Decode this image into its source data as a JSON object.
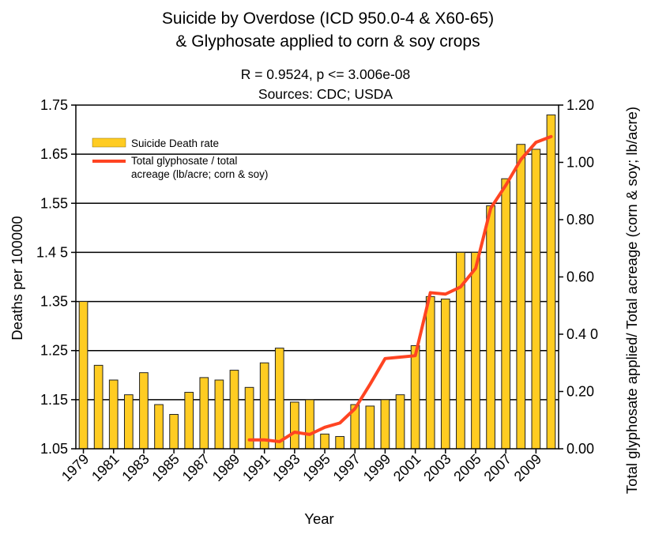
{
  "chart_data": {
    "type": "bar",
    "title": [
      "Suicide by Overdose (ICD 950.0-4 & X60-65)",
      "& Glyphosate applied to corn & soy crops"
    ],
    "subtitle": [
      "R = 0.9524, p <= 3.006e-08",
      "Sources: CDC; USDA"
    ],
    "xlabel": "Year",
    "ylabel": "Deaths per 100000",
    "ylabel_right": "Total glyphosate applied/ Total acreage (corn & soy; lb/acre)",
    "ylim": [
      1.05,
      1.75
    ],
    "ylim_right": [
      0.0,
      1.2
    ],
    "y_ticks": [
      "1.05",
      "1.15",
      "1.25",
      "1.35",
      "1.4 5",
      "1.55",
      "1.65",
      "1.75"
    ],
    "y_right_ticks": [
      "0.00",
      "0.20",
      "0.4 0",
      "0.60",
      "0.80",
      "1.00",
      "1.20"
    ],
    "x_tick_labels": [
      "1979",
      "1981",
      "1983",
      "1985",
      "1987",
      "1989",
      "1991",
      "1993",
      "1995",
      "1997",
      "1999",
      "2001",
      "2003",
      "2005",
      "2007",
      "2009"
    ],
    "grid": "horizontal",
    "legend_position": "top-left",
    "bar_color": "#ffcc22",
    "line_color": "#ff4422",
    "series": [
      {
        "name": "Suicide Death rate",
        "type": "bar",
        "axis": "left",
        "x": [
          1979,
          1980,
          1981,
          1982,
          1983,
          1984,
          1985,
          1986,
          1987,
          1988,
          1989,
          1990,
          1991,
          1992,
          1993,
          1994,
          1995,
          1996,
          1997,
          1998,
          1999,
          2000,
          2001,
          2002,
          2003,
          2004,
          2005,
          2006,
          2007,
          2008,
          2009,
          2010
        ],
        "values": [
          1.35,
          1.22,
          1.19,
          1.16,
          1.205,
          1.14,
          1.12,
          1.165,
          1.195,
          1.19,
          1.21,
          1.175,
          1.225,
          1.255,
          1.145,
          1.15,
          1.08,
          1.075,
          1.14,
          1.137,
          1.15,
          1.16,
          1.26,
          1.36,
          1.355,
          1.45,
          1.45,
          1.545,
          1.6,
          1.67,
          1.66,
          1.73
        ]
      },
      {
        "name": "Total glyphosate / total acreage (lb/acre; corn & soy)",
        "type": "line",
        "axis": "right",
        "x": [
          1990,
          1991,
          1992,
          1993,
          1994,
          1995,
          1996,
          1997,
          1998,
          1999,
          2000,
          2001,
          2002,
          2003,
          2004,
          2005,
          2006,
          2007,
          2008,
          2009,
          2010
        ],
        "values": [
          0.031,
          0.031,
          0.025,
          0.058,
          0.05,
          0.075,
          0.09,
          0.14,
          0.225,
          0.315,
          0.32,
          0.325,
          0.545,
          0.54,
          0.565,
          0.63,
          0.84,
          0.92,
          1.01,
          1.07,
          1.09
        ]
      }
    ]
  },
  "legend": {
    "bar_label": "Suicide Death rate",
    "line_label_1": "Total glyphosate / total",
    "line_label_2": "acreage (lb/acre; corn & soy)"
  }
}
